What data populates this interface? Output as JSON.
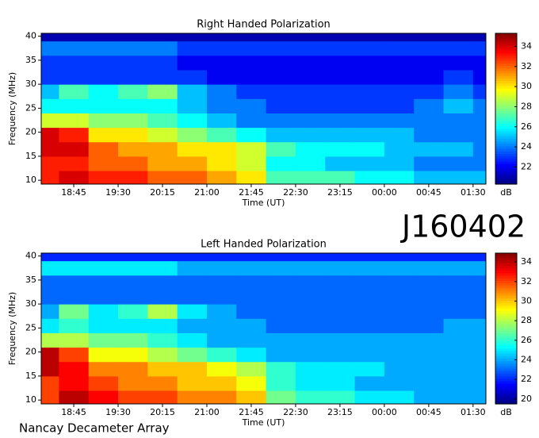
{
  "label": "J160402",
  "footer": "Nancay Decameter Array",
  "chart_data": [
    {
      "type": "heatmap",
      "title": "Right Handed Polarization",
      "x_label": "Time (UT)",
      "y_label": "Frequency (MHz)",
      "colorbar_label": "dB",
      "colormap": "jet",
      "xlim": [
        1092,
        1543
      ],
      "ylim": [
        9.2,
        40.6
      ],
      "zlim": [
        20.3,
        35.3
      ],
      "xticks": [
        {
          "value": 1125,
          "label": "18:45"
        },
        {
          "value": 1170,
          "label": "19:30"
        },
        {
          "value": 1215,
          "label": "20:15"
        },
        {
          "value": 1260,
          "label": "21:00"
        },
        {
          "value": 1305,
          "label": "21:45"
        },
        {
          "value": 1350,
          "label": "22:30"
        },
        {
          "value": 1395,
          "label": "23:15"
        },
        {
          "value": 1440,
          "label": "00:00"
        },
        {
          "value": 1485,
          "label": "00:45"
        },
        {
          "value": 1530,
          "label": "01:30"
        }
      ],
      "yticks": [
        10,
        15,
        20,
        25,
        30,
        35,
        40
      ],
      "zticks": [
        22,
        24,
        26,
        28,
        30,
        32,
        34
      ],
      "x_bins": [
        1092,
        1110,
        1140,
        1170,
        1200,
        1230,
        1260,
        1290,
        1320,
        1350,
        1380,
        1410,
        1440,
        1470,
        1500,
        1530,
        1543
      ],
      "y_bins": [
        9.2,
        12,
        15,
        18,
        21,
        24,
        27,
        30,
        33,
        36,
        39,
        40.6
      ],
      "z": [
        [
          33,
          34,
          33,
          33,
          32,
          32,
          31,
          30,
          27,
          27,
          27,
          26,
          26,
          25,
          25,
          25
        ],
        [
          33,
          33,
          32,
          32,
          31,
          31,
          30,
          29,
          26,
          26,
          25,
          25,
          25,
          24,
          24,
          24
        ],
        [
          34,
          34,
          32,
          31,
          31,
          30,
          30,
          29,
          27,
          26,
          26,
          26,
          25,
          25,
          25,
          24
        ],
        [
          34,
          33,
          30,
          30,
          29,
          28,
          27,
          26,
          25,
          25,
          25,
          25,
          25,
          24,
          24,
          24
        ],
        [
          29,
          29,
          28,
          28,
          27,
          26,
          25,
          24,
          24,
          24,
          24,
          24,
          24,
          24,
          24,
          24
        ],
        [
          26,
          26,
          26,
          26,
          26,
          25,
          24,
          24,
          23,
          23,
          23,
          23,
          23,
          24,
          25,
          24
        ],
        [
          25,
          27,
          26,
          27,
          28,
          25,
          24,
          23,
          23,
          23,
          23,
          23,
          23,
          23,
          24,
          23
        ],
        [
          23,
          23,
          23,
          23,
          23,
          23,
          22,
          22,
          22,
          22,
          22,
          22,
          22,
          22,
          23,
          22
        ],
        [
          23,
          23,
          23,
          23,
          23,
          22,
          22,
          22,
          22,
          22,
          22,
          22,
          22,
          22,
          22,
          22
        ],
        [
          24,
          24,
          24,
          24,
          24,
          23,
          23,
          23,
          23,
          23,
          23,
          23,
          23,
          23,
          23,
          23
        ],
        [
          21,
          21,
          21,
          21,
          21,
          21,
          21,
          21,
          21,
          21,
          21,
          21,
          21,
          21,
          21,
          21
        ]
      ]
    },
    {
      "type": "heatmap",
      "title": "Left Handed Polarization",
      "x_label": "Time (UT)",
      "y_label": "Frequency (MHz)",
      "colorbar_label": "dB",
      "colormap": "jet",
      "xlim": [
        1092,
        1543
      ],
      "ylim": [
        9.2,
        40.6
      ],
      "zlim": [
        19.5,
        34.9
      ],
      "xticks": [
        {
          "value": 1125,
          "label": "18:45"
        },
        {
          "value": 1170,
          "label": "19:30"
        },
        {
          "value": 1215,
          "label": "20:15"
        },
        {
          "value": 1260,
          "label": "21:00"
        },
        {
          "value": 1305,
          "label": "21:45"
        },
        {
          "value": 1350,
          "label": "22:30"
        },
        {
          "value": 1395,
          "label": "23:15"
        },
        {
          "value": 1440,
          "label": "00:00"
        },
        {
          "value": 1485,
          "label": "00:45"
        },
        {
          "value": 1530,
          "label": "01:30"
        }
      ],
      "yticks": [
        10,
        15,
        20,
        25,
        30,
        35,
        40
      ],
      "zticks": [
        20,
        22,
        24,
        26,
        28,
        30,
        32,
        34
      ],
      "x_bins": [
        1092,
        1110,
        1140,
        1170,
        1200,
        1230,
        1260,
        1290,
        1320,
        1350,
        1380,
        1410,
        1440,
        1470,
        1500,
        1530,
        1543
      ],
      "y_bins": [
        9.2,
        12,
        15,
        18,
        21,
        24,
        27,
        30,
        33,
        36,
        39,
        40.6
      ],
      "z": [
        [
          32,
          34,
          33,
          32,
          32,
          31,
          31,
          30,
          27,
          26,
          26,
          25,
          25,
          24,
          24,
          24
        ],
        [
          32,
          33,
          32,
          31,
          31,
          30,
          30,
          29,
          26,
          25,
          25,
          24,
          24,
          24,
          24,
          24
        ],
        [
          34,
          33,
          31,
          31,
          30,
          30,
          29,
          28,
          26,
          25,
          25,
          25,
          24,
          24,
          24,
          24
        ],
        [
          34,
          32,
          29,
          29,
          28,
          27,
          26,
          25,
          24,
          24,
          24,
          24,
          24,
          24,
          24,
          24
        ],
        [
          28,
          28,
          27,
          27,
          26,
          25,
          24,
          24,
          24,
          24,
          24,
          24,
          24,
          24,
          24,
          24
        ],
        [
          25,
          26,
          25,
          25,
          25,
          24,
          24,
          24,
          23,
          23,
          23,
          23,
          23,
          23,
          24,
          24
        ],
        [
          24,
          27,
          25,
          26,
          28,
          25,
          24,
          23,
          23,
          23,
          23,
          23,
          23,
          23,
          23,
          23
        ],
        [
          23,
          23,
          23,
          23,
          23,
          23,
          23,
          23,
          23,
          23,
          23,
          23,
          23,
          23,
          23,
          23
        ],
        [
          23,
          23,
          23,
          23,
          23,
          23,
          23,
          23,
          23,
          23,
          23,
          23,
          23,
          23,
          23,
          23
        ],
        [
          25,
          25,
          25,
          25,
          25,
          24,
          24,
          24,
          24,
          24,
          24,
          24,
          24,
          24,
          24,
          24
        ],
        [
          22,
          22,
          22,
          22,
          22,
          22,
          22,
          22,
          22,
          22,
          22,
          22,
          22,
          22,
          22,
          22
        ]
      ]
    }
  ]
}
